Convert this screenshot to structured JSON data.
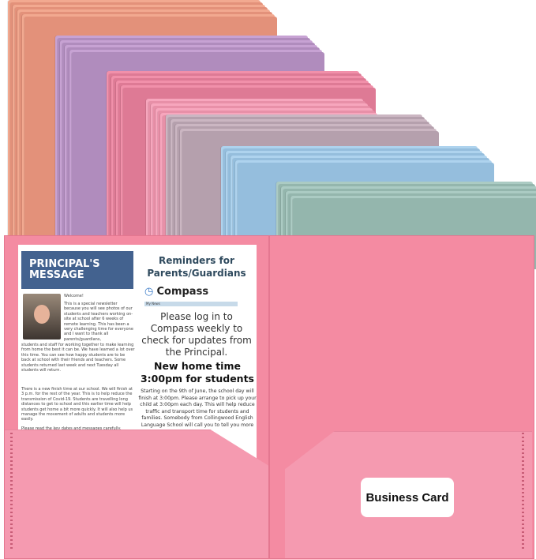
{
  "stacks": [
    {
      "color": "#f2a990",
      "edge": "#e3917a"
    },
    {
      "color": "#c7a2d3",
      "edge": "#b08cbd"
    },
    {
      "color": "#f190aa",
      "edge": "#de7a95"
    },
    {
      "color": "#f7a6bd",
      "edge": "#e890a8"
    },
    {
      "color": "#cbb6c2",
      "edge": "#b5a0ad"
    },
    {
      "color": "#aed3ee",
      "edge": "#95bedd"
    },
    {
      "color": "#abcbc3",
      "edge": "#94b6ad"
    }
  ],
  "front_color": "#f48ba2",
  "newsletter": {
    "banner": "PRINCIPAL'S MESSAGE",
    "welcome": "Welcome!",
    "body1": "This is a special newsletter because you will see photos of our students and teachers working on-site at school after 6 weeks of remote learning. This has been a very challenging time for everyone and I want to thank all parents/guardians,",
    "body2": "students and staff for working together to make learning from home the best it can be. We have learned a lot over this time. You can see how happy students are to be back at school with their friends and teachers. Some students returned last week and next Tuesday all students will return.",
    "body3": "There is a new finish time at our school. We will finish at 3 p.m. for the rest of the year. This is to help reduce the transmission of Covid-19. Students are travelling long distances to get to school and this earlier time will help students get home a bit more quickly. It will also help us manage the movement of adults and students more easily.",
    "body4": "Please read the key dates and messages carefully. Please",
    "reminders": "Reminders for Parents/Guardians",
    "compass": "Compass",
    "compass_bar": "My News",
    "login": "Please log in to Compass weekly to check for updates from the Principal.",
    "new_time": "New home time 3:00pm for students",
    "starting": "Starting on the 9th of June, the school day will finish at 3:00pm. Please arrange to pick up your child at 3:00pm each day. This will help reduce traffic and transport time for students and families. Somebody from Collingwood English Language School will call you to tell you more"
  },
  "business_card": "Business Card"
}
